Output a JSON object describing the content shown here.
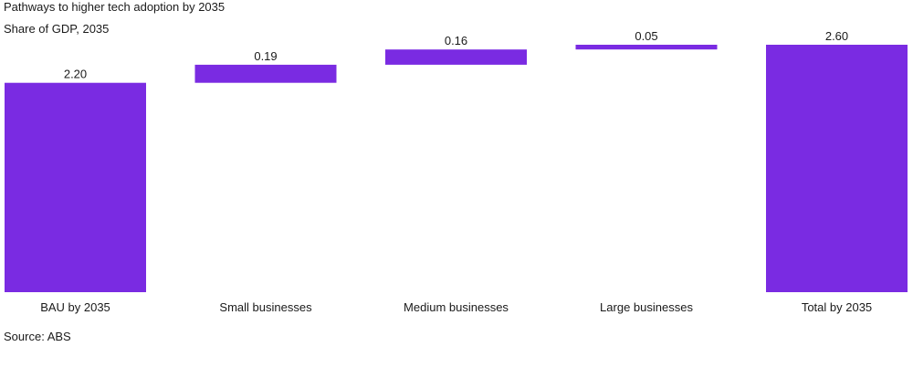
{
  "chart_data": {
    "type": "bar",
    "title": "Pathways to higher tech adoption by 2035",
    "subtitle": "Share of GDP, 2035",
    "source": "Source: ABS",
    "categories": [
      "BAU by 2035",
      "Small businesses",
      "Medium businesses",
      "Large businesses",
      "Total by 2035"
    ],
    "series": [
      {
        "values": [
          2.2,
          0.19,
          0.16,
          0.05,
          2.6
        ]
      }
    ],
    "value_labels": [
      "2.20",
      "0.19",
      "0.16",
      "0.05",
      "2.60"
    ],
    "bar_kind": [
      "total",
      "increment",
      "increment",
      "increment",
      "total"
    ],
    "ylim": [
      0,
      2.6
    ],
    "grid": false,
    "legend": "none",
    "bar_color": "#7a2be2"
  }
}
